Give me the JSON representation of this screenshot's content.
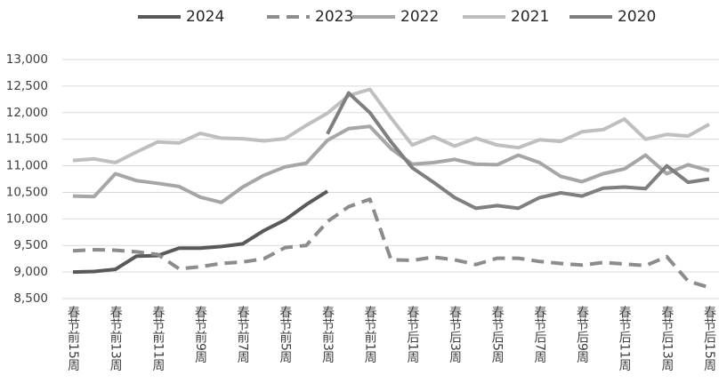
{
  "chart_data": {
    "type": "line",
    "categories": [
      "春节前15周",
      null,
      "春节前13周",
      null,
      "春节前11周",
      null,
      "春节前9周",
      null,
      "春节前7周",
      null,
      "春节前5周",
      null,
      "春节前3周",
      null,
      "春节前1周",
      null,
      "春节后1周",
      null,
      "春节后3周",
      null,
      "春节后5周",
      null,
      "春节后7周",
      null,
      "春节后9周",
      null,
      "春节后11周",
      null,
      "春节后13周",
      null,
      "春节后15周"
    ],
    "series": [
      {
        "name": "2024",
        "color": "#595959",
        "values": [
          9000,
          9010,
          9050,
          9300,
          9310,
          9450,
          9450,
          9480,
          9530,
          9780,
          9980,
          10270,
          10520,
          null,
          null,
          null,
          null,
          null,
          null,
          null,
          null,
          null,
          null,
          null,
          null,
          null,
          null,
          null,
          null,
          null,
          null
        ]
      },
      {
        "name": "2023",
        "color": "#8c8c8c",
        "dashed": true,
        "values": [
          9400,
          9420,
          9410,
          9380,
          9330,
          9060,
          9100,
          9160,
          9190,
          9250,
          9460,
          9500,
          9950,
          10230,
          10370,
          9230,
          9220,
          9280,
          9230,
          9140,
          9260,
          9260,
          9200,
          9160,
          9130,
          9180,
          9150,
          9120,
          9290,
          8830,
          8710
        ]
      },
      {
        "name": "2022",
        "color": "#a6a6a6",
        "values": [
          10430,
          10420,
          10850,
          10720,
          10670,
          10610,
          10410,
          10310,
          10600,
          10820,
          10980,
          11050,
          11480,
          11700,
          11740,
          11320,
          11030,
          11060,
          11120,
          11030,
          11020,
          11200,
          11060,
          10800,
          10700,
          10850,
          10940,
          11200,
          10850,
          11020,
          10910
        ]
      },
      {
        "name": "2021",
        "color": "#bfbfbf",
        "values": [
          11100,
          11130,
          11060,
          11260,
          11450,
          11430,
          11610,
          11520,
          11510,
          11470,
          11510,
          11760,
          11990,
          12320,
          12440,
          11900,
          11390,
          11550,
          11370,
          11520,
          11390,
          11340,
          11490,
          11460,
          11640,
          11680,
          11880,
          11500,
          11590,
          11560,
          11780
        ]
      },
      {
        "name": "2020",
        "color": "#7f7f7f",
        "values": [
          null,
          null,
          null,
          null,
          null,
          null,
          null,
          null,
          null,
          null,
          null,
          null,
          11600,
          12370,
          12000,
          11450,
          10960,
          10690,
          10400,
          10200,
          10250,
          10200,
          10400,
          10490,
          10430,
          10580,
          10600,
          10570,
          11000,
          10690,
          10750
        ]
      }
    ],
    "ylim": [
      8500,
      13000
    ],
    "yticks": [
      {
        "value": 8500,
        "label": "8,500"
      },
      {
        "value": 9000,
        "label": "9,000"
      },
      {
        "value": 9500,
        "label": "9,500"
      },
      {
        "value": 10000,
        "label": "10,000"
      },
      {
        "value": 10500,
        "label": "10,500"
      },
      {
        "value": 11000,
        "label": "11,000"
      },
      {
        "value": 11500,
        "label": "11,500"
      },
      {
        "value": 12000,
        "label": "12,000"
      },
      {
        "value": 12500,
        "label": "12,500"
      },
      {
        "value": 13000,
        "label": "13,000"
      }
    ],
    "grid": true,
    "legend": "top"
  }
}
